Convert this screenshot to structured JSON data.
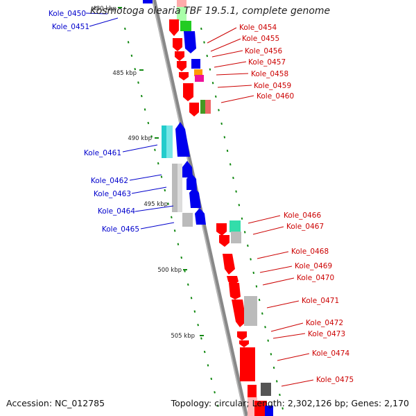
{
  "title": "Kosmotoga olearia TBF 19.5.1, complete genome",
  "footer": {
    "accession": "Accession: NC_012785",
    "stats": "Topology: circular; Length: 2,302,126 bp; Genes: 2,170"
  },
  "colors": {
    "left_labels": "#0000cc",
    "right_labels": "#cc0000",
    "backbone": "#888888",
    "tick": "#118811"
  },
  "ticks": [
    {
      "label": "480 kbp"
    },
    {
      "label": "485 kbp"
    },
    {
      "label": "490 kbp"
    },
    {
      "label": "495 kbp"
    },
    {
      "label": "500 kbp"
    },
    {
      "label": "505 kbp"
    }
  ],
  "left_genes": [
    "Kole_0450",
    "Kole_0451",
    "Kole_0461",
    "Kole_0462",
    "Kole_0463",
    "Kole_0464",
    "Kole_0465"
  ],
  "right_genes": [
    "Kole_0454",
    "Kole_0455",
    "Kole_0456",
    "Kole_0457",
    "Kole_0458",
    "Kole_0459",
    "Kole_0460",
    "Kole_0466",
    "Kole_0467",
    "Kole_0468",
    "Kole_0469",
    "Kole_0470",
    "Kole_0471",
    "Kole_0472",
    "Kole_0473",
    "Kole_0474",
    "Kole_0475"
  ]
}
